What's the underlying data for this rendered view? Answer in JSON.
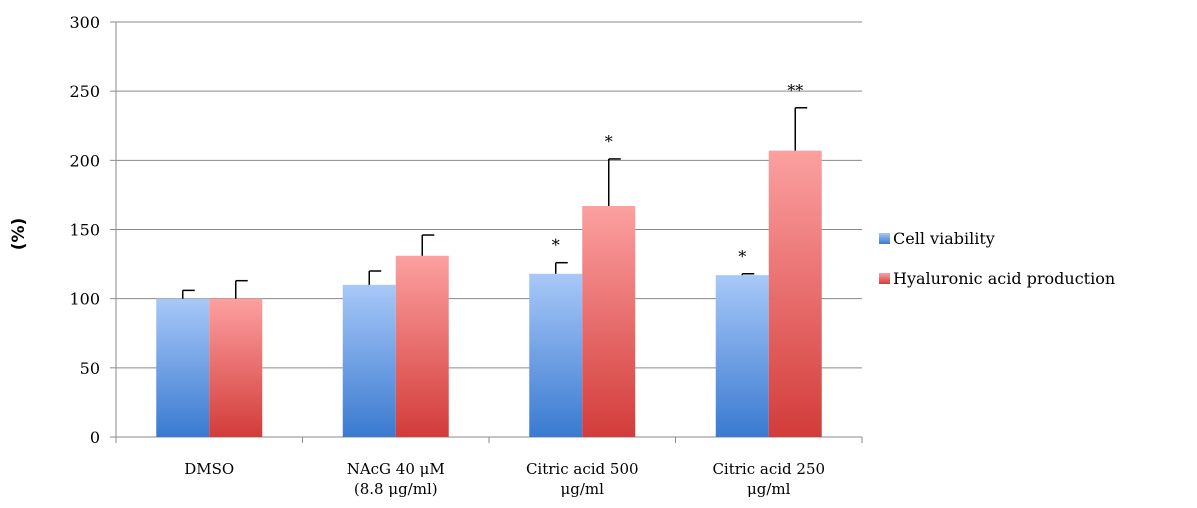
{
  "chart_data": {
    "type": "bar",
    "title": "",
    "xlabel": "",
    "ylabel": "(%)",
    "ylim": [
      0,
      300
    ],
    "yticks": [
      0,
      50,
      100,
      150,
      200,
      250,
      300
    ],
    "grid": true,
    "legend_position": "right",
    "categories": [
      [
        "DMSO"
      ],
      [
        "NAcG 40 μM",
        "(8.8 μg/ml)"
      ],
      [
        "Citric acid 500",
        "μg/ml"
      ],
      [
        "Citric acid 250",
        "μg/ml"
      ]
    ],
    "series": [
      {
        "name": "Cell viability",
        "colors": [
          "#a8c8f8",
          "#3a7ad0"
        ],
        "values": [
          100,
          110,
          118,
          117
        ],
        "errors": [
          6,
          10,
          8,
          1
        ],
        "significance": [
          "",
          "",
          "*",
          "*"
        ]
      },
      {
        "name": "Hyaluronic acid production",
        "colors": [
          "#fca0a0",
          "#d23c3a"
        ],
        "values": [
          100,
          131,
          167,
          207
        ],
        "errors": [
          13,
          15,
          34,
          31
        ],
        "significance": [
          "",
          "",
          "*",
          "**"
        ]
      }
    ]
  }
}
